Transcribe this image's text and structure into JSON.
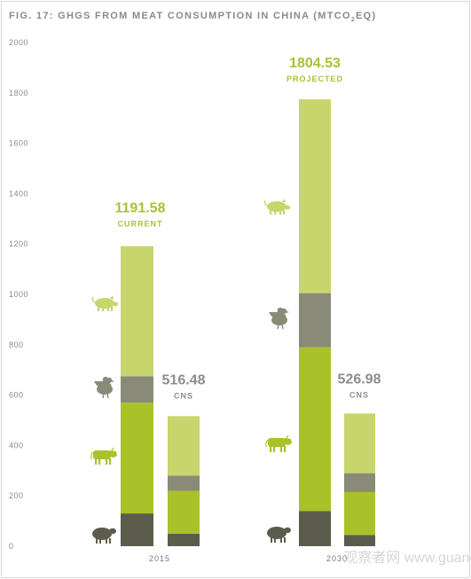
{
  "chart_data": {
    "type": "bar",
    "stacked": true,
    "title": "FIG. 17: GHGS FROM MEAT CONSUMPTION IN CHINA (MTCO",
    "title_subscript": "2",
    "title_end": "EQ)",
    "categories": [
      "2015",
      "2030"
    ],
    "ylim": [
      0,
      2000
    ],
    "yticks": [
      0,
      200,
      400,
      600,
      800,
      1000,
      1200,
      1400,
      1600,
      1800,
      2000
    ],
    "grid": false,
    "legend": "icons at left of each group: pig, chicken, cattle, sheep",
    "bars": [
      {
        "category": "2015",
        "kind": "current",
        "total_label": "1191.58",
        "sub_label": "CURRENT",
        "segments": [
          {
            "icon": "sheep",
            "value": 130,
            "color": "#5c5c4c"
          },
          {
            "icon": "cattle",
            "value": 440,
            "color": "#a9c22a"
          },
          {
            "icon": "chicken",
            "value": 105,
            "color": "#8a8a78"
          },
          {
            "icon": "pig",
            "value": 516.58,
            "color": "#c8d56c"
          }
        ]
      },
      {
        "category": "2015",
        "kind": "cns",
        "total_label": "516.48",
        "sub_label": "CNS",
        "segments": [
          {
            "icon": "sheep",
            "value": 50,
            "color": "#5c5c4c"
          },
          {
            "icon": "cattle",
            "value": 170,
            "color": "#a9c22a"
          },
          {
            "icon": "chicken",
            "value": 60,
            "color": "#8a8a78"
          },
          {
            "icon": "pig",
            "value": 236.48,
            "color": "#c8d56c"
          }
        ]
      },
      {
        "category": "2030",
        "kind": "projected",
        "total_label": "1804.53",
        "sub_label": "PROJECTED",
        "segments": [
          {
            "icon": "sheep",
            "value": 140,
            "color": "#5c5c4c"
          },
          {
            "icon": "cattle",
            "value": 650,
            "color": "#a9c22a"
          },
          {
            "icon": "chicken",
            "value": 215,
            "color": "#8a8a78"
          },
          {
            "icon": "pig",
            "value": 769.53,
            "color": "#c8d56c"
          }
        ]
      },
      {
        "category": "2030",
        "kind": "cns",
        "total_label": "526.98",
        "sub_label": "CNS",
        "segments": [
          {
            "icon": "sheep",
            "value": 45,
            "color": "#5c5c4c"
          },
          {
            "icon": "cattle",
            "value": 170,
            "color": "#a9c22a"
          },
          {
            "icon": "chicken",
            "value": 75,
            "color": "#8a8a78"
          },
          {
            "icon": "pig",
            "value": 236.98,
            "color": "#c8d56c"
          }
        ]
      }
    ]
  },
  "colors": {
    "current_label": "#a9c234",
    "cns_label": "#8c8c8c",
    "icon_light": "#c8d56c",
    "icon_green": "#a9c22a",
    "icon_gray": "#8a8a78",
    "icon_dark": "#5c5c4c"
  },
  "watermark": "观察者网 www.guancha.cn"
}
